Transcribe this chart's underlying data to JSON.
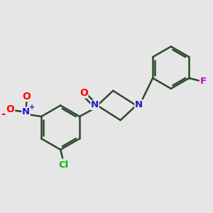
{
  "bg_color": "#e6e6e6",
  "bond_color": "#2d4a2d",
  "bond_lw": 1.8,
  "atom_colors": {
    "O": "#ff0000",
    "N": "#1a1acc",
    "Cl": "#00bb00",
    "F": "#cc00cc",
    "NO2_N": "#1a1acc",
    "NO2_O": "#ff0000"
  },
  "font_size": 9.5,
  "fig_size": [
    3.0,
    3.0
  ],
  "dpi": 100
}
